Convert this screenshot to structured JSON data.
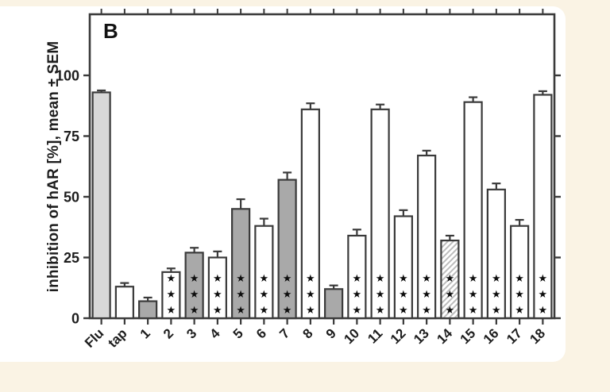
{
  "ui": {
    "page_background": "#faf3e4",
    "card_background": "#ffffff"
  },
  "chart_data": {
    "type": "bar",
    "panel_label": "B",
    "title": "",
    "xlabel": "",
    "ylabel": "inhibition of hAR [%], mean ± SEM",
    "ylim": [
      0,
      125
    ],
    "yticks": [
      0,
      25,
      50,
      75,
      100
    ],
    "grid": "off",
    "legend": "none",
    "xtick_rotation_deg": -45,
    "star_glyph": "★",
    "categories": [
      "Flu",
      "tap",
      "1",
      "2",
      "3",
      "4",
      "5",
      "6",
      "7",
      "8",
      "9",
      "10",
      "11",
      "12",
      "13",
      "14",
      "15",
      "16",
      "17",
      "18"
    ],
    "series": [
      {
        "name": "inhibition of hAR [%], mean",
        "values": [
          93,
          13,
          7,
          19,
          27,
          25,
          45,
          38,
          57,
          86,
          12,
          34,
          86,
          42,
          67,
          32,
          89,
          53,
          38,
          92
        ],
        "sem": [
          0.8,
          1.5,
          1.5,
          1.5,
          2,
          2.5,
          4,
          3,
          3,
          2.5,
          1.5,
          2.5,
          2,
          2.5,
          2,
          2,
          2,
          2.5,
          2.5,
          1.5
        ]
      }
    ],
    "bar_fill_styles": [
      "flu",
      "white",
      "gray",
      "white",
      "gray",
      "white",
      "gray",
      "white",
      "gray",
      "white",
      "gray",
      "white",
      "white",
      "white",
      "white",
      "hatch",
      "white",
      "white",
      "white",
      "white"
    ],
    "significance_stars": [
      0,
      0,
      0,
      3,
      3,
      3,
      3,
      3,
      3,
      3,
      0,
      3,
      3,
      3,
      3,
      3,
      3,
      3,
      3,
      3
    ],
    "colors": {
      "outline": "#3a3a3a",
      "flu_gray": "#d8d8d8",
      "gray": "#a9a9a9",
      "white": "#ffffff",
      "hatch_line": "#bcbcbc",
      "star": "#0d0d0d",
      "text": "#1d1d1d"
    }
  }
}
